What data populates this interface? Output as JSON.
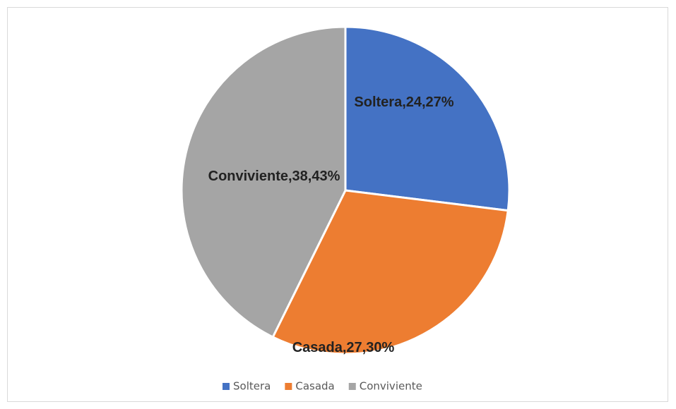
{
  "chart_data": {
    "type": "pie",
    "categories": [
      "Soltera",
      "Casada",
      "Conviviente"
    ],
    "values": [
      24,
      27,
      38
    ],
    "value_labels": [
      "Soltera,24,27%",
      "Casada,27,30%",
      "Conviviente,38,43%"
    ],
    "colors": [
      "#4472c4",
      "#ed7d31",
      "#a5a5a5"
    ],
    "legend": "bottom"
  }
}
